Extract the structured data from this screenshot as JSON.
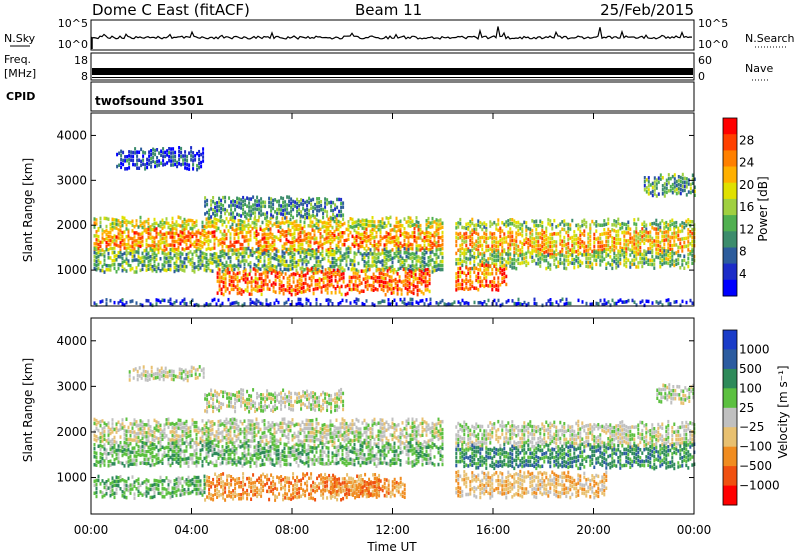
{
  "header": {
    "title": "Dome C East (fitACF)",
    "beam": "Beam 11",
    "date": "25/Feb/2015"
  },
  "chart_data": [
    {
      "type": "line",
      "panel": "noise",
      "left_label": "N.Sky",
      "right_label": "N.Search",
      "right_legend_marker": "dotted",
      "yticks_left": [
        "10^5",
        "10^0"
      ],
      "yticks_right": [
        "10^5",
        "10^0"
      ],
      "scale": "log",
      "series": [
        {
          "name": "N.Sky",
          "style": "solid"
        },
        {
          "name": "N.Search",
          "style": "dotted"
        }
      ]
    },
    {
      "type": "line",
      "panel": "frequency",
      "left_label_1": "Freq.",
      "left_label_2": "[MHz]",
      "right_label": "Nave",
      "right_legend_marker": "dotted",
      "yticks_left": [
        "18",
        "8"
      ],
      "yticks_right": [
        "60",
        "0"
      ],
      "series": [
        {
          "name": "Freq.",
          "style": "solid"
        },
        {
          "name": "Nave",
          "style": "dotted"
        }
      ]
    },
    {
      "type": "table",
      "panel": "cpid",
      "label": "CPID",
      "text": "twofsound 3501"
    },
    {
      "type": "heatmap",
      "panel": "power",
      "ylabel": "Slant Range [km]",
      "yticks": [
        1000,
        2000,
        3000,
        4000
      ],
      "ylim": [
        200,
        4500
      ],
      "xlim": [
        0,
        24
      ],
      "colorbar": {
        "label": "Power [dB]",
        "ticks": [
          "28",
          "24",
          "20",
          "16",
          "12",
          "8",
          "4"
        ],
        "colors": [
          "#ff0000",
          "#ff4000",
          "#ff8000",
          "#ffb000",
          "#e0e000",
          "#a0d040",
          "#50b050",
          "#3c8c6c",
          "#2c5c9c",
          "#1c2cc8",
          "#0000ff"
        ]
      },
      "bands": [
        {
          "t0": 0.1,
          "t1": 14.0,
          "r0": 1950,
          "r1": 2150,
          "level": 0.55
        },
        {
          "t0": 14.5,
          "t1": 24.0,
          "r0": 1950,
          "r1": 2100,
          "level": 0.45
        },
        {
          "t0": 0.1,
          "t1": 14.0,
          "r0": 1450,
          "r1": 1900,
          "level": 0.75
        },
        {
          "t0": 14.5,
          "t1": 24.0,
          "r0": 1400,
          "r1": 1900,
          "level": 0.7
        },
        {
          "t0": 0.1,
          "t1": 14.0,
          "r0": 1000,
          "r1": 1450,
          "level": 0.4
        },
        {
          "t0": 14.5,
          "t1": 24.0,
          "r0": 1100,
          "r1": 1400,
          "level": 0.45
        },
        {
          "t0": 5.0,
          "t1": 13.5,
          "r0": 500,
          "r1": 1000,
          "level": 0.85
        },
        {
          "t0": 14.5,
          "t1": 16.5,
          "r0": 600,
          "r1": 1100,
          "level": 0.85
        },
        {
          "t0": 1.0,
          "t1": 4.5,
          "r0": 3300,
          "r1": 3700,
          "level": 0.15
        },
        {
          "t0": 4.5,
          "t1": 10.0,
          "r0": 2200,
          "r1": 2600,
          "level": 0.3
        },
        {
          "t0": 22.0,
          "t1": 24.0,
          "r0": 2700,
          "r1": 3100,
          "level": 0.35
        },
        {
          "t0": 0.1,
          "t1": 24.0,
          "r0": 250,
          "r1": 320,
          "level": 0.1
        }
      ]
    },
    {
      "type": "heatmap",
      "panel": "velocity",
      "ylabel": "Slant Range [km]",
      "yticks": [
        1000,
        2000,
        3000,
        4000
      ],
      "ylim": [
        200,
        4500
      ],
      "xlim": [
        0,
        24
      ],
      "xticks": [
        "00:00",
        "04:00",
        "08:00",
        "12:00",
        "16:00",
        "20:00",
        "00:00"
      ],
      "xlabel": "Time UT",
      "colorbar": {
        "label": "Velocity [m s⁻¹]",
        "ticks": [
          "1000",
          "500",
          "100",
          "25",
          "−25",
          "−100",
          "−500",
          "−1000"
        ],
        "colors": [
          "#1a3cc8",
          "#2c5ca0",
          "#2e8a5a",
          "#5cc040",
          "#c0c0c0",
          "#e8c070",
          "#f08c20",
          "#f05010",
          "#ff0000"
        ]
      },
      "bands": [
        {
          "t0": 0.1,
          "t1": 14.0,
          "r0": 1750,
          "r1": 2250,
          "level": 4
        },
        {
          "t0": 14.5,
          "t1": 24.0,
          "r0": 1700,
          "r1": 2200,
          "level": 4
        },
        {
          "t0": 0.1,
          "t1": 14.0,
          "r0": 1300,
          "r1": 1750,
          "level": 3
        },
        {
          "t0": 14.5,
          "t1": 24.0,
          "r0": 1250,
          "r1": 1700,
          "level": 2
        },
        {
          "t0": 4.5,
          "t1": 11.5,
          "r0": 550,
          "r1": 1050,
          "level": 6
        },
        {
          "t0": 9.5,
          "t1": 12.5,
          "r0": 600,
          "r1": 950,
          "level": 6
        },
        {
          "t0": 0.1,
          "t1": 4.5,
          "r0": 600,
          "r1": 1000,
          "level": 3
        },
        {
          "t0": 14.5,
          "t1": 20.5,
          "r0": 600,
          "r1": 1100,
          "level": 5
        },
        {
          "t0": 1.5,
          "t1": 4.5,
          "r0": 3200,
          "r1": 3400,
          "level": 4
        },
        {
          "t0": 4.5,
          "t1": 10.0,
          "r0": 2500,
          "r1": 2900,
          "level": 4
        },
        {
          "t0": 22.5,
          "t1": 24.0,
          "r0": 2700,
          "r1": 3000,
          "level": 4
        }
      ]
    }
  ]
}
